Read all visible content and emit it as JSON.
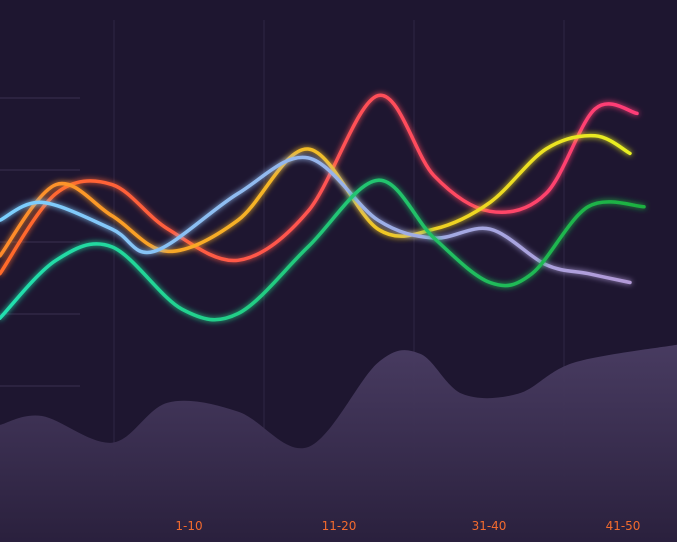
{
  "chart_data": {
    "type": "line",
    "title": "",
    "xlabel": "",
    "ylabel": "",
    "categories": [
      "1-10",
      "11-20",
      "31-40",
      "41-50"
    ],
    "grid": true,
    "legend": "none",
    "x_range": [
      0,
      45
    ],
    "y_range": [
      0,
      100
    ],
    "series": [
      {
        "color_start": "#ff6a2a",
        "color_end": "#ff3c78",
        "x": [
          0,
          4,
          8,
          12,
          17,
          22,
          27,
          31,
          35,
          39,
          42.5,
          45.5
        ],
        "y": [
          52,
          70,
          72,
          62,
          55,
          66,
          92,
          74,
          66,
          70,
          89,
          88
        ]
      },
      {
        "color_start": "#ff8a2a",
        "color_end": "#e8f020",
        "x": [
          0,
          4,
          8,
          12,
          17,
          22,
          27,
          31,
          35,
          39,
          42.5,
          45
        ],
        "y": [
          56,
          72,
          65,
          57,
          64,
          80,
          62,
          62,
          68,
          80,
          83,
          79
        ]
      },
      {
        "color_start": "#7ad0ff",
        "color_end": "#b39ad8",
        "x": [
          0,
          3,
          8,
          11,
          17,
          22,
          27,
          31,
          35,
          39,
          42,
          45
        ],
        "y": [
          64,
          68,
          62,
          57,
          70,
          78,
          64,
          60,
          62,
          54,
          52,
          50
        ]
      },
      {
        "color_start": "#22e0b0",
        "color_end": "#1fb040",
        "x": [
          0,
          4,
          8,
          13,
          17,
          22,
          27,
          31,
          35,
          38,
          42,
          46
        ],
        "y": [
          42,
          55,
          58,
          44,
          43,
          58,
          73,
          60,
          50,
          52,
          67,
          67
        ]
      }
    ],
    "area": {
      "color": "#4a3d63",
      "x": [
        0,
        3,
        8,
        12,
        17,
        22,
        27,
        30,
        33,
        37,
        41,
        45
      ],
      "y": [
        18,
        20,
        14,
        23,
        21,
        13,
        32,
        34,
        25,
        25,
        32,
        36
      ]
    }
  }
}
